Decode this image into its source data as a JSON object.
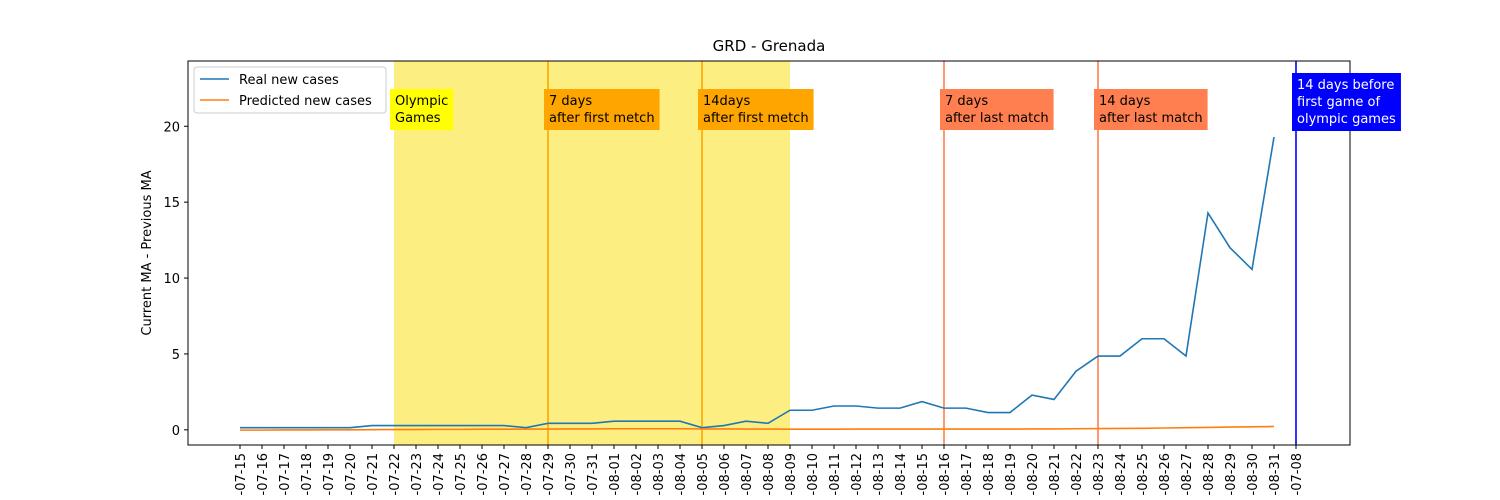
{
  "chart_data": {
    "type": "line",
    "title": "GRD - Grenada",
    "y_label": "Current MA - Previous MA",
    "categories": [
      "-07-15",
      "-07-16",
      "-07-17",
      "-07-18",
      "-07-19",
      "-07-20",
      "-07-21",
      "-07-22",
      "-07-23",
      "-07-24",
      "-07-25",
      "-07-26",
      "-07-27",
      "-07-28",
      "-07-29",
      "-07-30",
      "-07-31",
      "-08-01",
      "-08-02",
      "-08-03",
      "-08-04",
      "-08-05",
      "-08-06",
      "-08-07",
      "-08-08",
      "-08-09",
      "-08-10",
      "-08-11",
      "-08-12",
      "-08-13",
      "-08-14",
      "-08-15",
      "-08-16",
      "-08-17",
      "-08-18",
      "-08-19",
      "-08-20",
      "-08-21",
      "-08-22",
      "-08-23",
      "-08-24",
      "-08-25",
      "-08-26",
      "-08-27",
      "-08-28",
      "-08-29",
      "-08-30",
      "-08-31",
      "-07-08"
    ],
    "series": [
      {
        "name": "Real new cases",
        "color": "#1f77b4",
        "values": [
          0.14,
          0.14,
          0.14,
          0.14,
          0.14,
          0.14,
          0.28,
          0.28,
          0.28,
          0.28,
          0.28,
          0.28,
          0.28,
          0.14,
          0.43,
          0.43,
          0.43,
          0.57,
          0.57,
          0.57,
          0.57,
          0.14,
          0.28,
          0.57,
          0.43,
          1.29,
          1.29,
          1.57,
          1.57,
          1.43,
          1.43,
          1.86,
          1.43,
          1.43,
          1.14,
          1.14,
          2.29,
          2.0,
          3.86,
          4.86,
          4.86,
          6.0,
          6.0,
          4.86,
          14.29,
          12.0,
          10.57,
          19.29,
          null
        ]
      },
      {
        "name": "Predicted new cases",
        "color": "#ff7f0e",
        "values": [
          -0.02,
          -0.02,
          -0.01,
          -0.01,
          0.0,
          0.0,
          0.01,
          0.02,
          0.02,
          0.03,
          0.03,
          0.04,
          0.04,
          0.05,
          0.05,
          0.06,
          0.06,
          0.07,
          0.07,
          0.07,
          0.07,
          0.06,
          0.06,
          0.05,
          0.05,
          0.04,
          0.04,
          0.04,
          0.05,
          0.05,
          0.05,
          0.05,
          0.05,
          0.05,
          0.05,
          0.05,
          0.06,
          0.06,
          0.07,
          0.08,
          0.09,
          0.1,
          0.12,
          0.14,
          0.16,
          0.18,
          0.2,
          0.22,
          null
        ]
      }
    ],
    "ylim": [
      -1,
      24.3
    ],
    "yticks": [
      0,
      5,
      10,
      15,
      20
    ],
    "legend": "upper left",
    "spans": [
      {
        "from": "-07-22",
        "to": "-08-09",
        "color": "#fdee82"
      }
    ],
    "vlines": [
      {
        "x": "-07-29",
        "color": "orange"
      },
      {
        "x": "-08-05",
        "color": "orange"
      },
      {
        "x": "-08-16",
        "color": "coral"
      },
      {
        "x": "-08-23",
        "color": "coral"
      },
      {
        "x": "-07-08",
        "color": "blue"
      }
    ],
    "annotations": [
      {
        "x": "-07-22",
        "lines": [
          "Olympic",
          "Games"
        ],
        "background": "yellow",
        "text_color": "black"
      },
      {
        "x": "-07-29",
        "lines": [
          "7 days",
          "after first metch"
        ],
        "background": "orange",
        "text_color": "black"
      },
      {
        "x": "-08-05",
        "lines": [
          "14days",
          "after first metch"
        ],
        "background": "orange",
        "text_color": "black"
      },
      {
        "x": "-08-16",
        "lines": [
          "7 days",
          "after last match"
        ],
        "background": "coral",
        "text_color": "black"
      },
      {
        "x": "-08-23",
        "lines": [
          "14 days",
          "after last match"
        ],
        "background": "coral",
        "text_color": "black"
      },
      {
        "x": "-07-08",
        "lines": [
          "14 days before",
          "first game of",
          "olympic games"
        ],
        "background": "blue",
        "text_color": "white"
      }
    ]
  }
}
